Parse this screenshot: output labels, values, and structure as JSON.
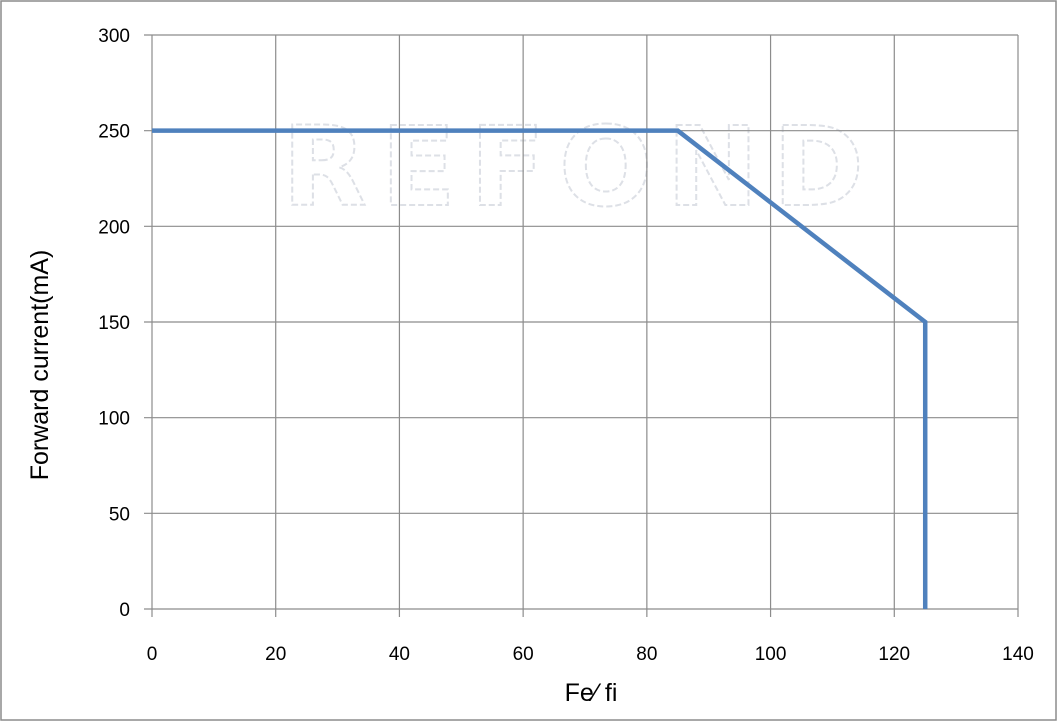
{
  "chart_data": {
    "type": "line",
    "title": "",
    "xlabel": "Fe⁄ fi",
    "ylabel": "Forward current(mA)",
    "xlim": [
      0,
      140
    ],
    "ylim": [
      0,
      300
    ],
    "x_ticks": [
      0,
      20,
      40,
      60,
      80,
      100,
      120,
      140
    ],
    "y_ticks": [
      0,
      50,
      100,
      150,
      200,
      250,
      300
    ],
    "grid": true,
    "legend": "none",
    "series": [
      {
        "color": "#4f81bd",
        "points": [
          {
            "x": 0,
            "y": 250
          },
          {
            "x": 85,
            "y": 250
          },
          {
            "x": 125,
            "y": 150
          },
          {
            "x": 125,
            "y": 0
          }
        ]
      }
    ]
  },
  "watermark": {
    "text": "REFOND",
    "color": "#cfd3dc"
  },
  "colors": {
    "grid": "#8c8c8c",
    "frame": "#8c8c8c",
    "series": "#4f81bd"
  }
}
